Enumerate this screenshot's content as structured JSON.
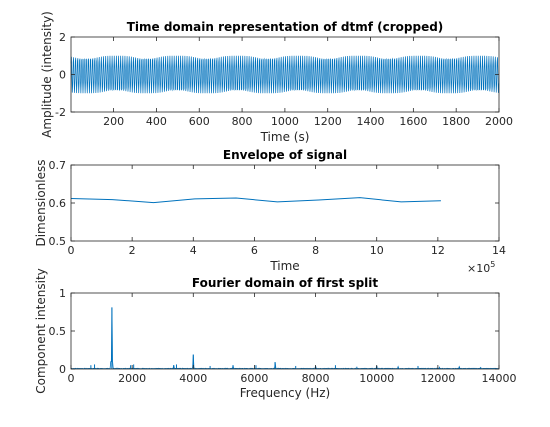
{
  "chart_data": [
    {
      "type": "line",
      "title": "Time domain representation of dtmf (cropped)",
      "xlabel": "Time (s)",
      "ylabel": "Amplitude (intensity)",
      "xlim": [
        1,
        2000
      ],
      "ylim": [
        -2,
        2
      ],
      "xticks": [
        "200",
        "400",
        "600",
        "800",
        "1000",
        "1200",
        "1400",
        "1600",
        "1800",
        "2000"
      ],
      "yticks": [
        "-2",
        "0",
        "2"
      ],
      "series": [
        {
          "kind": "dtmf_oscillation",
          "amplitude": 1,
          "cycles_per_sample": 0.1,
          "color": "#0072bd"
        }
      ]
    },
    {
      "type": "line",
      "title": "Envelope of signal",
      "xlabel": "Time",
      "ylabel": "Dimensionless",
      "xlim": [
        0,
        1400000
      ],
      "ylim": [
        0.5,
        0.7
      ],
      "xticks": [
        "0",
        "2",
        "4",
        "6",
        "8",
        "10",
        "12",
        "14"
      ],
      "yticks": [
        "0.5",
        "0.6",
        "0.7"
      ],
      "x_exponent_base": "×10",
      "x_exponent": "5",
      "series": [
        {
          "x": [
            0,
            135000,
            270000,
            405000,
            540000,
            675000,
            810000,
            945000,
            1080000,
            1210000
          ],
          "y": [
            0.612,
            0.609,
            0.601,
            0.611,
            0.613,
            0.603,
            0.608,
            0.614,
            0.603,
            0.606
          ],
          "color": "#0072bd"
        }
      ]
    },
    {
      "type": "line",
      "title": "Fourier domain of first split",
      "xlabel": "Frequency (Hz)",
      "ylabel": "Component intensity",
      "xlim": [
        0,
        14000
      ],
      "ylim": [
        0,
        1
      ],
      "xticks": [
        "0",
        "2000",
        "4000",
        "6000",
        "8000",
        "10000",
        "12000",
        "14000"
      ],
      "yticks": [
        "0",
        "0.5",
        "1"
      ],
      "series": [
        {
          "peaks_x": [
            650,
            770,
            1336,
            1950,
            2050,
            3360,
            3450,
            4000,
            4550,
            5300,
            6050,
            6672,
            7350,
            8000,
            8650,
            9350,
            10000,
            10700,
            11350,
            12050,
            12700,
            13400
          ],
          "peaks_y": [
            0.05,
            0.06,
            0.81,
            0.05,
            0.06,
            0.05,
            0.06,
            0.19,
            0.04,
            0.05,
            0.05,
            0.09,
            0.04,
            0.04,
            0.05,
            0.03,
            0.04,
            0.03,
            0.04,
            0.03,
            0.03,
            0.02
          ],
          "color": "#0072bd"
        }
      ]
    }
  ]
}
